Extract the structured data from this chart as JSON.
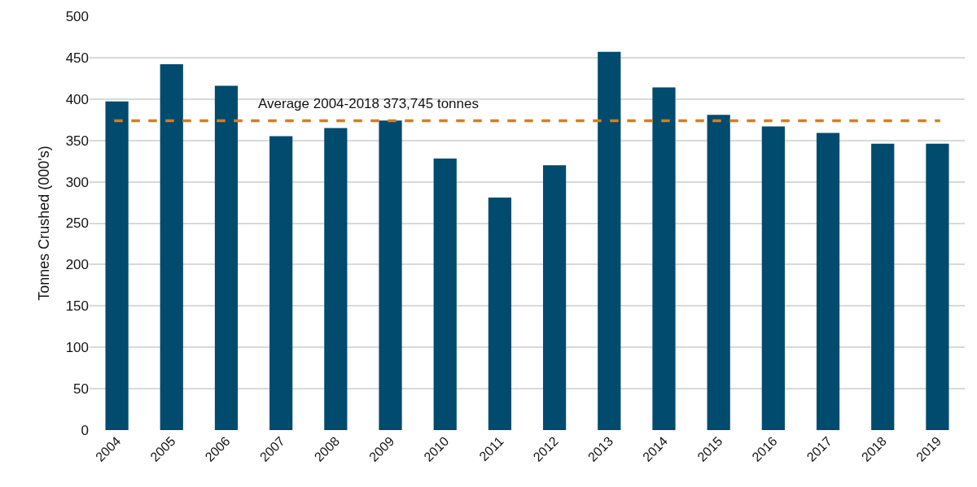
{
  "chart_data": {
    "type": "bar",
    "ylabel": "Tonnes Crushed (000's)",
    "categories": [
      "2004",
      "2005",
      "2006",
      "2007",
      "2008",
      "2009",
      "2010",
      "2011",
      "2012",
      "2013",
      "2014",
      "2015",
      "2016",
      "2017",
      "2018",
      "2019"
    ],
    "values": [
      397,
      442,
      416,
      355,
      365,
      374,
      328,
      281,
      320,
      457,
      414,
      381,
      367,
      359,
      346,
      346
    ],
    "color": "#004b6e",
    "ylim": [
      0,
      500
    ],
    "yticks": [
      0,
      50,
      100,
      150,
      200,
      250,
      300,
      350,
      400,
      450,
      500
    ],
    "grid": "y",
    "ref_lines": [
      {
        "axis": "y",
        "value": 373.745,
        "label": "Average 2004-2018 373,745 tonnes",
        "color": "#e07b10",
        "line_style": "dashed"
      }
    ]
  }
}
